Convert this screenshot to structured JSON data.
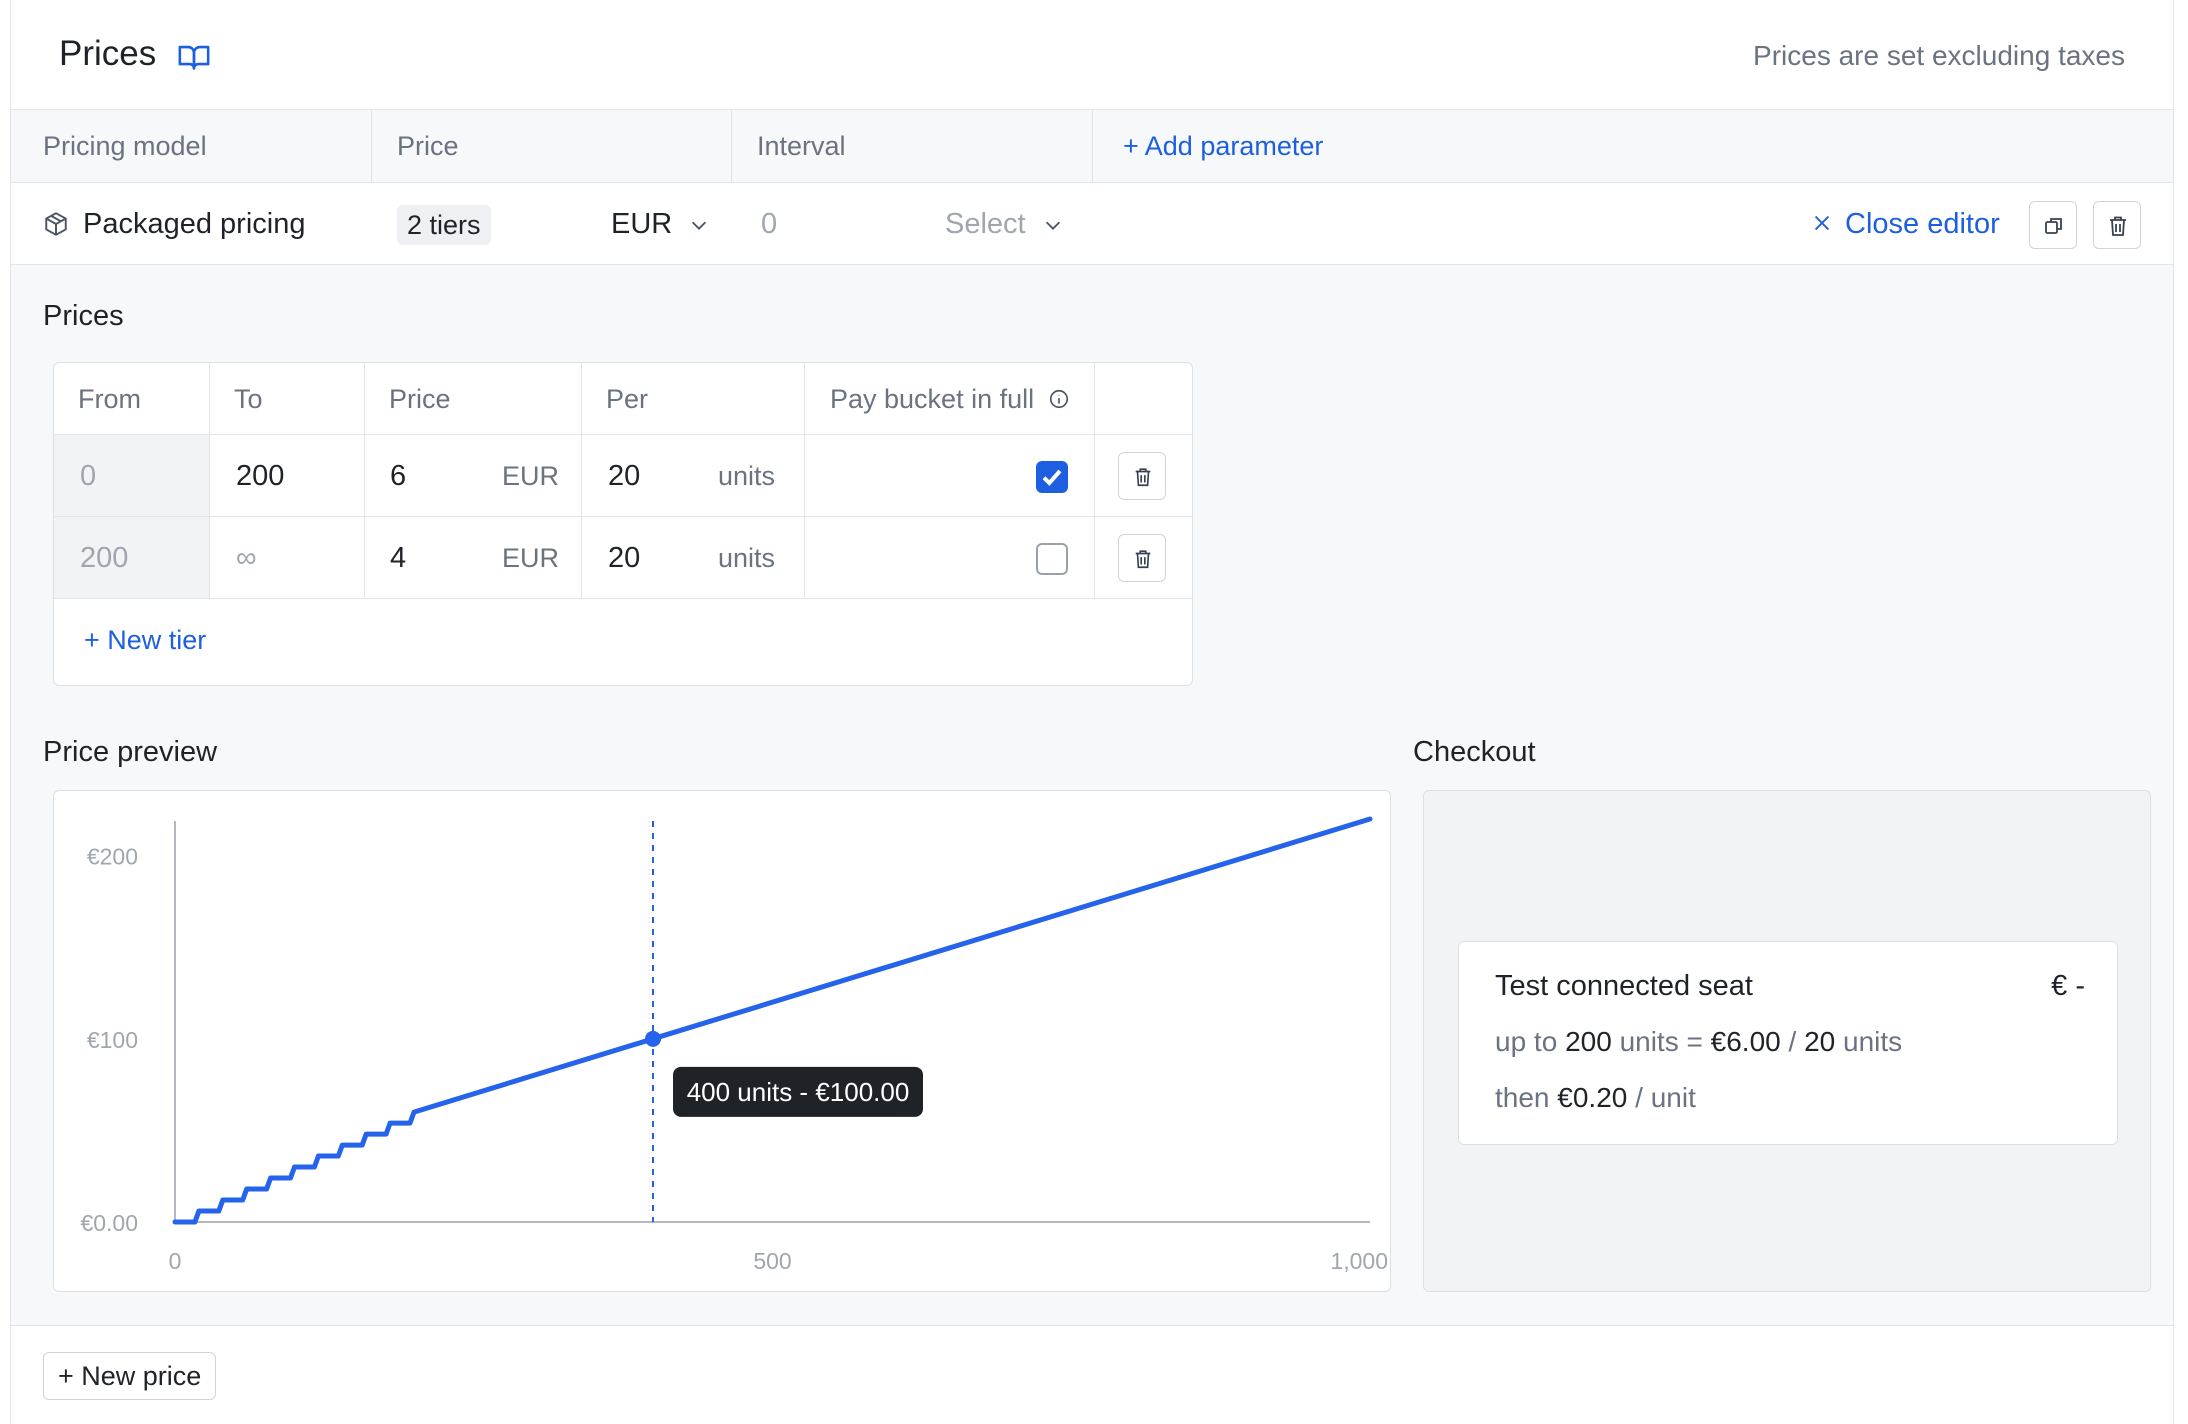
{
  "header": {
    "title": "Prices",
    "icon": "book-open-icon",
    "note": "Prices are set excluding taxes"
  },
  "columns": {
    "pricing_model": "Pricing model",
    "price": "Price",
    "interval": "Interval",
    "add_parameter": "Add parameter"
  },
  "price_row": {
    "model_icon": "package-icon",
    "model": "Packaged pricing",
    "tiers_badge": "2 tiers",
    "currency": "EUR",
    "interval_value": "0",
    "interval_select": "Select",
    "close_editor": "Close editor",
    "duplicate_icon": "copy-icon",
    "delete_icon": "trash-icon"
  },
  "prices_section": {
    "label": "Prices",
    "headers": {
      "from": "From",
      "to": "To",
      "price": "Price",
      "per": "Per",
      "bucket": "Pay bucket in full"
    },
    "rows": [
      {
        "from": "0",
        "to": "200",
        "price": "6",
        "currency": "EUR",
        "per": "20",
        "unit": "units",
        "pay_in_full": true
      },
      {
        "from": "200",
        "to": "∞",
        "price": "4",
        "currency": "EUR",
        "per": "20",
        "unit": "units",
        "pay_in_full": false
      }
    ],
    "new_tier": "New tier"
  },
  "preview": {
    "label": "Price preview",
    "tooltip": "400 units - €100.00"
  },
  "chart_data": {
    "type": "line",
    "x_ticks": [
      "0",
      "500",
      "1,000"
    ],
    "y_ticks": [
      "€0.00",
      "€100",
      "€200"
    ],
    "xlim": [
      0,
      1000
    ],
    "ylim": [
      0,
      220
    ],
    "series": [
      {
        "values": [
          [
            0,
            0
          ],
          [
            20,
            6
          ],
          [
            40,
            12
          ],
          [
            60,
            18
          ],
          [
            80,
            24
          ],
          [
            100,
            30
          ],
          [
            120,
            36
          ],
          [
            140,
            42
          ],
          [
            160,
            48
          ],
          [
            180,
            54
          ],
          [
            200,
            60
          ],
          [
            400,
            100
          ],
          [
            1000,
            220
          ]
        ],
        "color": "#2563eb"
      }
    ],
    "highlight": {
      "x": 400,
      "y": 100
    }
  },
  "checkout": {
    "label": "Checkout",
    "item": "Test connected seat",
    "amount": "€ -",
    "line1_prefix": "up to",
    "line1_qty": "200",
    "line1_units": "units",
    "line1_eq": "=",
    "line1_price": "€6.00",
    "line1_slash": "/",
    "line1_per": "20",
    "line1_per_units": "units",
    "line2_prefix": "then",
    "line2_price": "€0.20",
    "line2_suffix": "/ unit"
  },
  "footer": {
    "new_price": "New price"
  }
}
